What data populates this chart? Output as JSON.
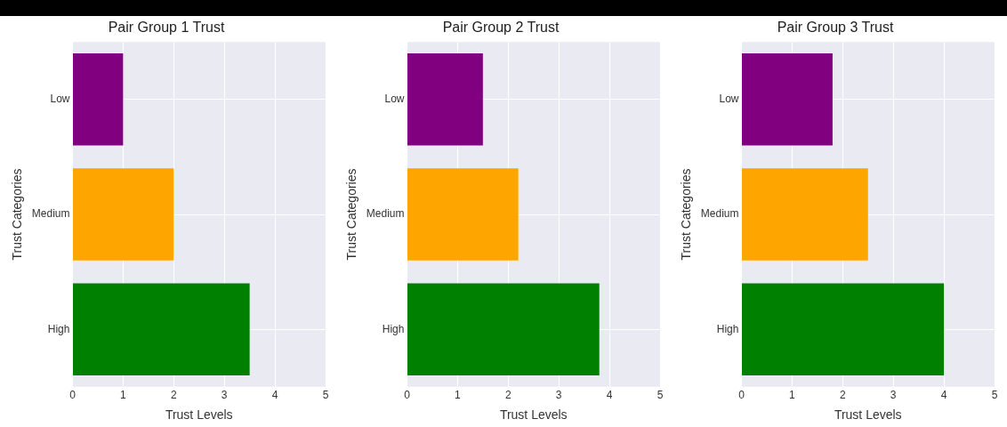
{
  "chart_data": [
    {
      "type": "bar",
      "orientation": "horizontal",
      "title": "Pair Group 1 Trust",
      "xlabel": "Trust Levels",
      "ylabel": "Trust Categories",
      "categories": [
        "Low",
        "Medium",
        "High"
      ],
      "values": [
        1,
        2,
        3.5
      ],
      "colors": [
        "#800080",
        "#ffa500",
        "#008000"
      ],
      "xlim": [
        0,
        5
      ],
      "xticks": [
        0,
        1,
        2,
        3,
        4,
        5
      ],
      "grid": true
    },
    {
      "type": "bar",
      "orientation": "horizontal",
      "title": "Pair Group 2 Trust",
      "xlabel": "Trust Levels",
      "ylabel": "Trust Categories",
      "categories": [
        "Low",
        "Medium",
        "High"
      ],
      "values": [
        1.5,
        2.2,
        3.8
      ],
      "colors": [
        "#800080",
        "#ffa500",
        "#008000"
      ],
      "xlim": [
        0,
        5
      ],
      "xticks": [
        0,
        1,
        2,
        3,
        4,
        5
      ],
      "grid": true
    },
    {
      "type": "bar",
      "orientation": "horizontal",
      "title": "Pair Group 3 Trust",
      "xlabel": "Trust Levels",
      "ylabel": "Trust Categories",
      "categories": [
        "Low",
        "Medium",
        "High"
      ],
      "values": [
        1.8,
        2.5,
        4.0
      ],
      "colors": [
        "#800080",
        "#ffa500",
        "#008000"
      ],
      "xlim": [
        0,
        5
      ],
      "xticks": [
        0,
        1,
        2,
        3,
        4,
        5
      ],
      "grid": true
    }
  ]
}
